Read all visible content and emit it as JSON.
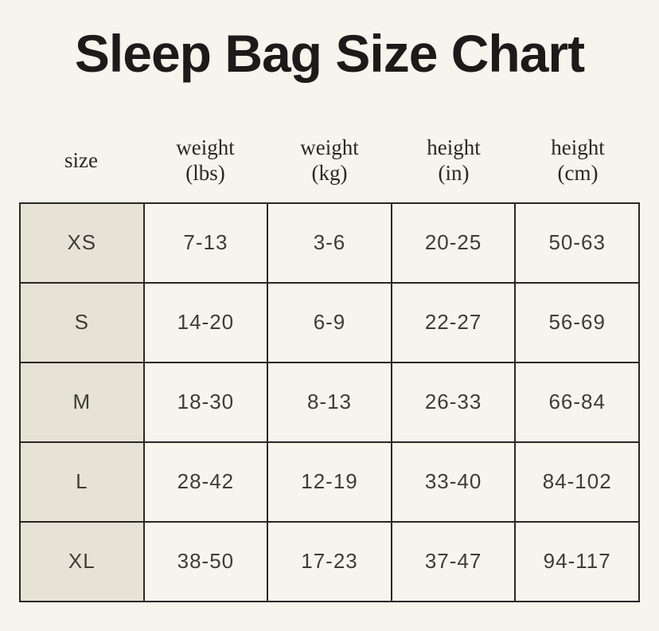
{
  "title": "Sleep Bag Size Chart",
  "colors": {
    "page_bg": "#f7f3ed",
    "size_col_bg": "#e6e2d5",
    "border": "#2a2724",
    "title_text": "#1c1b19",
    "header_text": "#2b2823",
    "cell_text": "#3f3c38"
  },
  "table": {
    "headers": [
      {
        "line1": "size",
        "line2": ""
      },
      {
        "line1": "weight",
        "line2": "(lbs)"
      },
      {
        "line1": "weight",
        "line2": "(kg)"
      },
      {
        "line1": "height",
        "line2": "(in)"
      },
      {
        "line1": "height",
        "line2": "(cm)"
      }
    ],
    "rows": [
      {
        "size": "XS",
        "weight_lbs": "7-13",
        "weight_kg": "3-6",
        "height_in": "20-25",
        "height_cm": "50-63"
      },
      {
        "size": "S",
        "weight_lbs": "14-20",
        "weight_kg": "6-9",
        "height_in": "22-27",
        "height_cm": "56-69"
      },
      {
        "size": "M",
        "weight_lbs": "18-30",
        "weight_kg": "8-13",
        "height_in": "26-33",
        "height_cm": "66-84"
      },
      {
        "size": "L",
        "weight_lbs": "28-42",
        "weight_kg": "12-19",
        "height_in": "33-40",
        "height_cm": "84-102"
      },
      {
        "size": "XL",
        "weight_lbs": "38-50",
        "weight_kg": "17-23",
        "height_in": "37-47",
        "height_cm": "94-117"
      }
    ]
  },
  "chart_data": {
    "type": "table",
    "title": "Sleep Bag Size Chart",
    "columns": [
      "size",
      "weight (lbs)",
      "weight (kg)",
      "height (in)",
      "height (cm)"
    ],
    "rows": [
      [
        "XS",
        "7-13",
        "3-6",
        "20-25",
        "50-63"
      ],
      [
        "S",
        "14-20",
        "6-9",
        "22-27",
        "56-69"
      ],
      [
        "M",
        "18-30",
        "8-13",
        "26-33",
        "66-84"
      ],
      [
        "L",
        "28-42",
        "12-19",
        "33-40",
        "84-102"
      ],
      [
        "XL",
        "38-50",
        "17-23",
        "37-47",
        "94-117"
      ]
    ]
  }
}
